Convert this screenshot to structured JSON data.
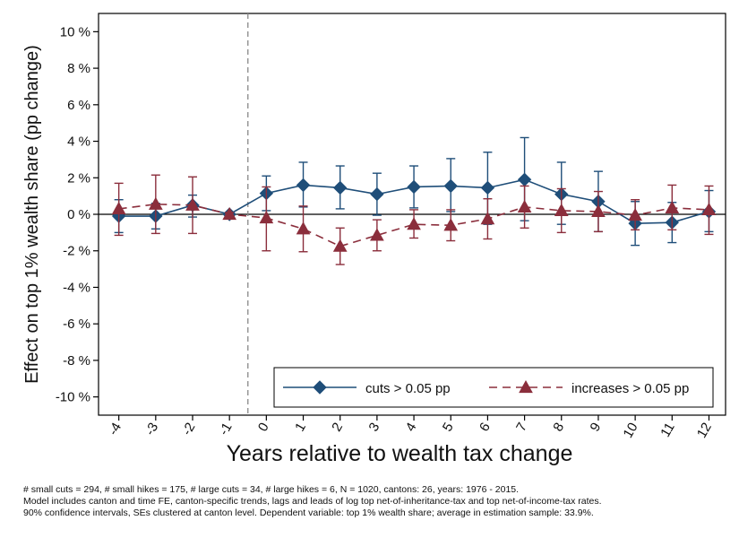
{
  "chart_data": {
    "type": "line",
    "xlabel": "Years relative to wealth tax change",
    "ylabel": "Effect on top 1% wealth share (pp change)",
    "x": [
      -4,
      -3,
      -2,
      -1,
      0,
      1,
      2,
      3,
      4,
      5,
      6,
      7,
      8,
      9,
      10,
      11,
      12
    ],
    "x_tick_labels": [
      "-4",
      "-3",
      "-2",
      "-1",
      "0",
      "1",
      "2",
      "3",
      "4",
      "5",
      "6",
      "7",
      "8",
      "9",
      "10",
      "11",
      "12"
    ],
    "ylim": [
      -11,
      11
    ],
    "y_ticks": [
      -10,
      -8,
      -6,
      -4,
      -2,
      0,
      2,
      4,
      6,
      8,
      10
    ],
    "y_tick_labels": [
      "-10 %",
      "-8 %",
      "-6 %",
      "-4 %",
      "-2 %",
      "0 %",
      "2 %",
      "4 %",
      "6 %",
      "8 %",
      "10 %"
    ],
    "reference_vline_x": -0.5,
    "reference_hline_y": 0,
    "series": [
      {
        "name": "cuts > 0.05 pp",
        "color": "#1f4e79",
        "marker": "diamond",
        "line_style": "solid",
        "values": [
          -0.1,
          -0.1,
          0.5,
          0.0,
          1.15,
          1.6,
          1.45,
          1.1,
          1.5,
          1.55,
          1.45,
          1.9,
          1.1,
          0.7,
          -0.5,
          -0.45,
          0.15
        ],
        "ci_low": [
          -1.0,
          -0.8,
          -0.15,
          -0.1,
          0.2,
          0.4,
          0.3,
          -0.05,
          0.35,
          0.15,
          -0.55,
          -0.35,
          -0.55,
          -0.95,
          -1.7,
          -1.55,
          -0.95
        ],
        "ci_high": [
          0.8,
          0.6,
          1.05,
          0.1,
          2.1,
          2.85,
          2.65,
          2.25,
          2.65,
          3.05,
          3.4,
          4.2,
          2.85,
          2.35,
          0.7,
          0.65,
          1.3
        ]
      },
      {
        "name": "increases > 0.05 pp",
        "color": "#8b2e3c",
        "marker": "triangle",
        "line_style": "dashed",
        "values": [
          0.3,
          0.55,
          0.5,
          0.0,
          -0.2,
          -0.8,
          -1.75,
          -1.15,
          -0.55,
          -0.6,
          -0.25,
          0.4,
          0.2,
          0.15,
          -0.05,
          0.35,
          0.25
        ],
        "ci_low": [
          -1.15,
          -1.05,
          -1.05,
          -0.1,
          -2.0,
          -2.05,
          -2.75,
          -2.0,
          -1.3,
          -1.45,
          -1.35,
          -0.75,
          -1.0,
          -0.95,
          -0.85,
          -0.85,
          -1.1
        ],
        "ci_high": [
          1.7,
          2.15,
          2.05,
          0.1,
          1.5,
          0.45,
          -0.75,
          -0.3,
          0.25,
          0.25,
          0.85,
          1.55,
          1.4,
          1.25,
          0.8,
          1.6,
          1.55
        ]
      }
    ],
    "legend": {
      "position": "bottom-right"
    }
  },
  "notes": [
    "# small cuts = 294, # small hikes = 175, # large cuts = 34, # large hikes = 6, N = 1020, cantons: 26, years: 1976 - 2015.",
    "Model includes canton and time FE, canton-specific trends, lags and leads of log top net-of-inheritance-tax and top net-of-income-tax rates.",
    "90% confidence intervals, SEs clustered at canton level. Dependent variable: top 1% wealth share; average in estimation sample: 33.9%."
  ]
}
